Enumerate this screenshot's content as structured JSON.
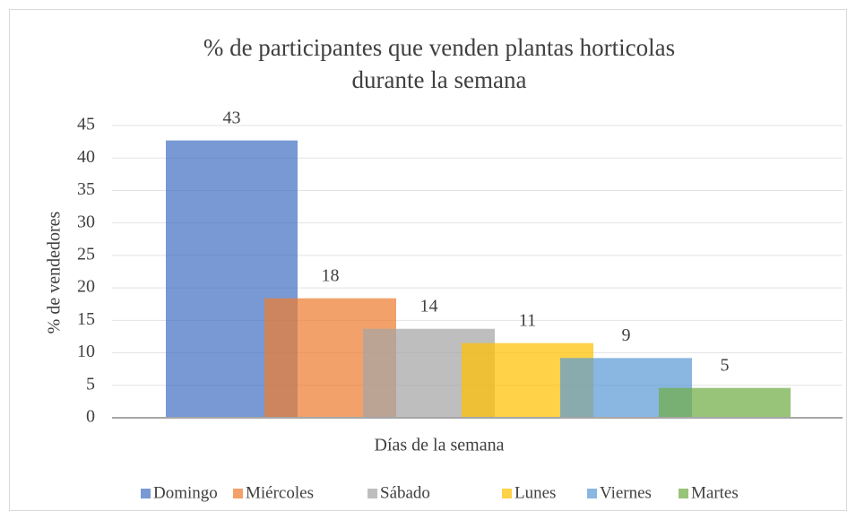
{
  "chart_data": {
    "type": "bar",
    "title": "% de participantes que venden plantas horticolas",
    "subtitle": "durante la semana",
    "x_label": "Días de la semana",
    "y_label": "% de vendedores",
    "categories": [
      "Domingo",
      "Miércoles",
      "Sábado",
      "Lunes",
      "Viernes",
      "Martes"
    ],
    "values": [
      42.7,
      18.4,
      13.7,
      11.5,
      9.2,
      4.6
    ],
    "value_labels": [
      "43",
      "18",
      "14",
      "11",
      "9",
      "5"
    ],
    "colors": [
      "#4472c4",
      "#ed7d31",
      "#a5a5a5",
      "#ffc000",
      "#5b9bd5",
      "#70ad47"
    ],
    "ylim": [
      0,
      45
    ],
    "yticks": [
      0,
      5,
      10,
      15,
      20,
      25,
      30,
      35,
      40,
      45
    ],
    "grid": true,
    "legend": "bottom"
  }
}
